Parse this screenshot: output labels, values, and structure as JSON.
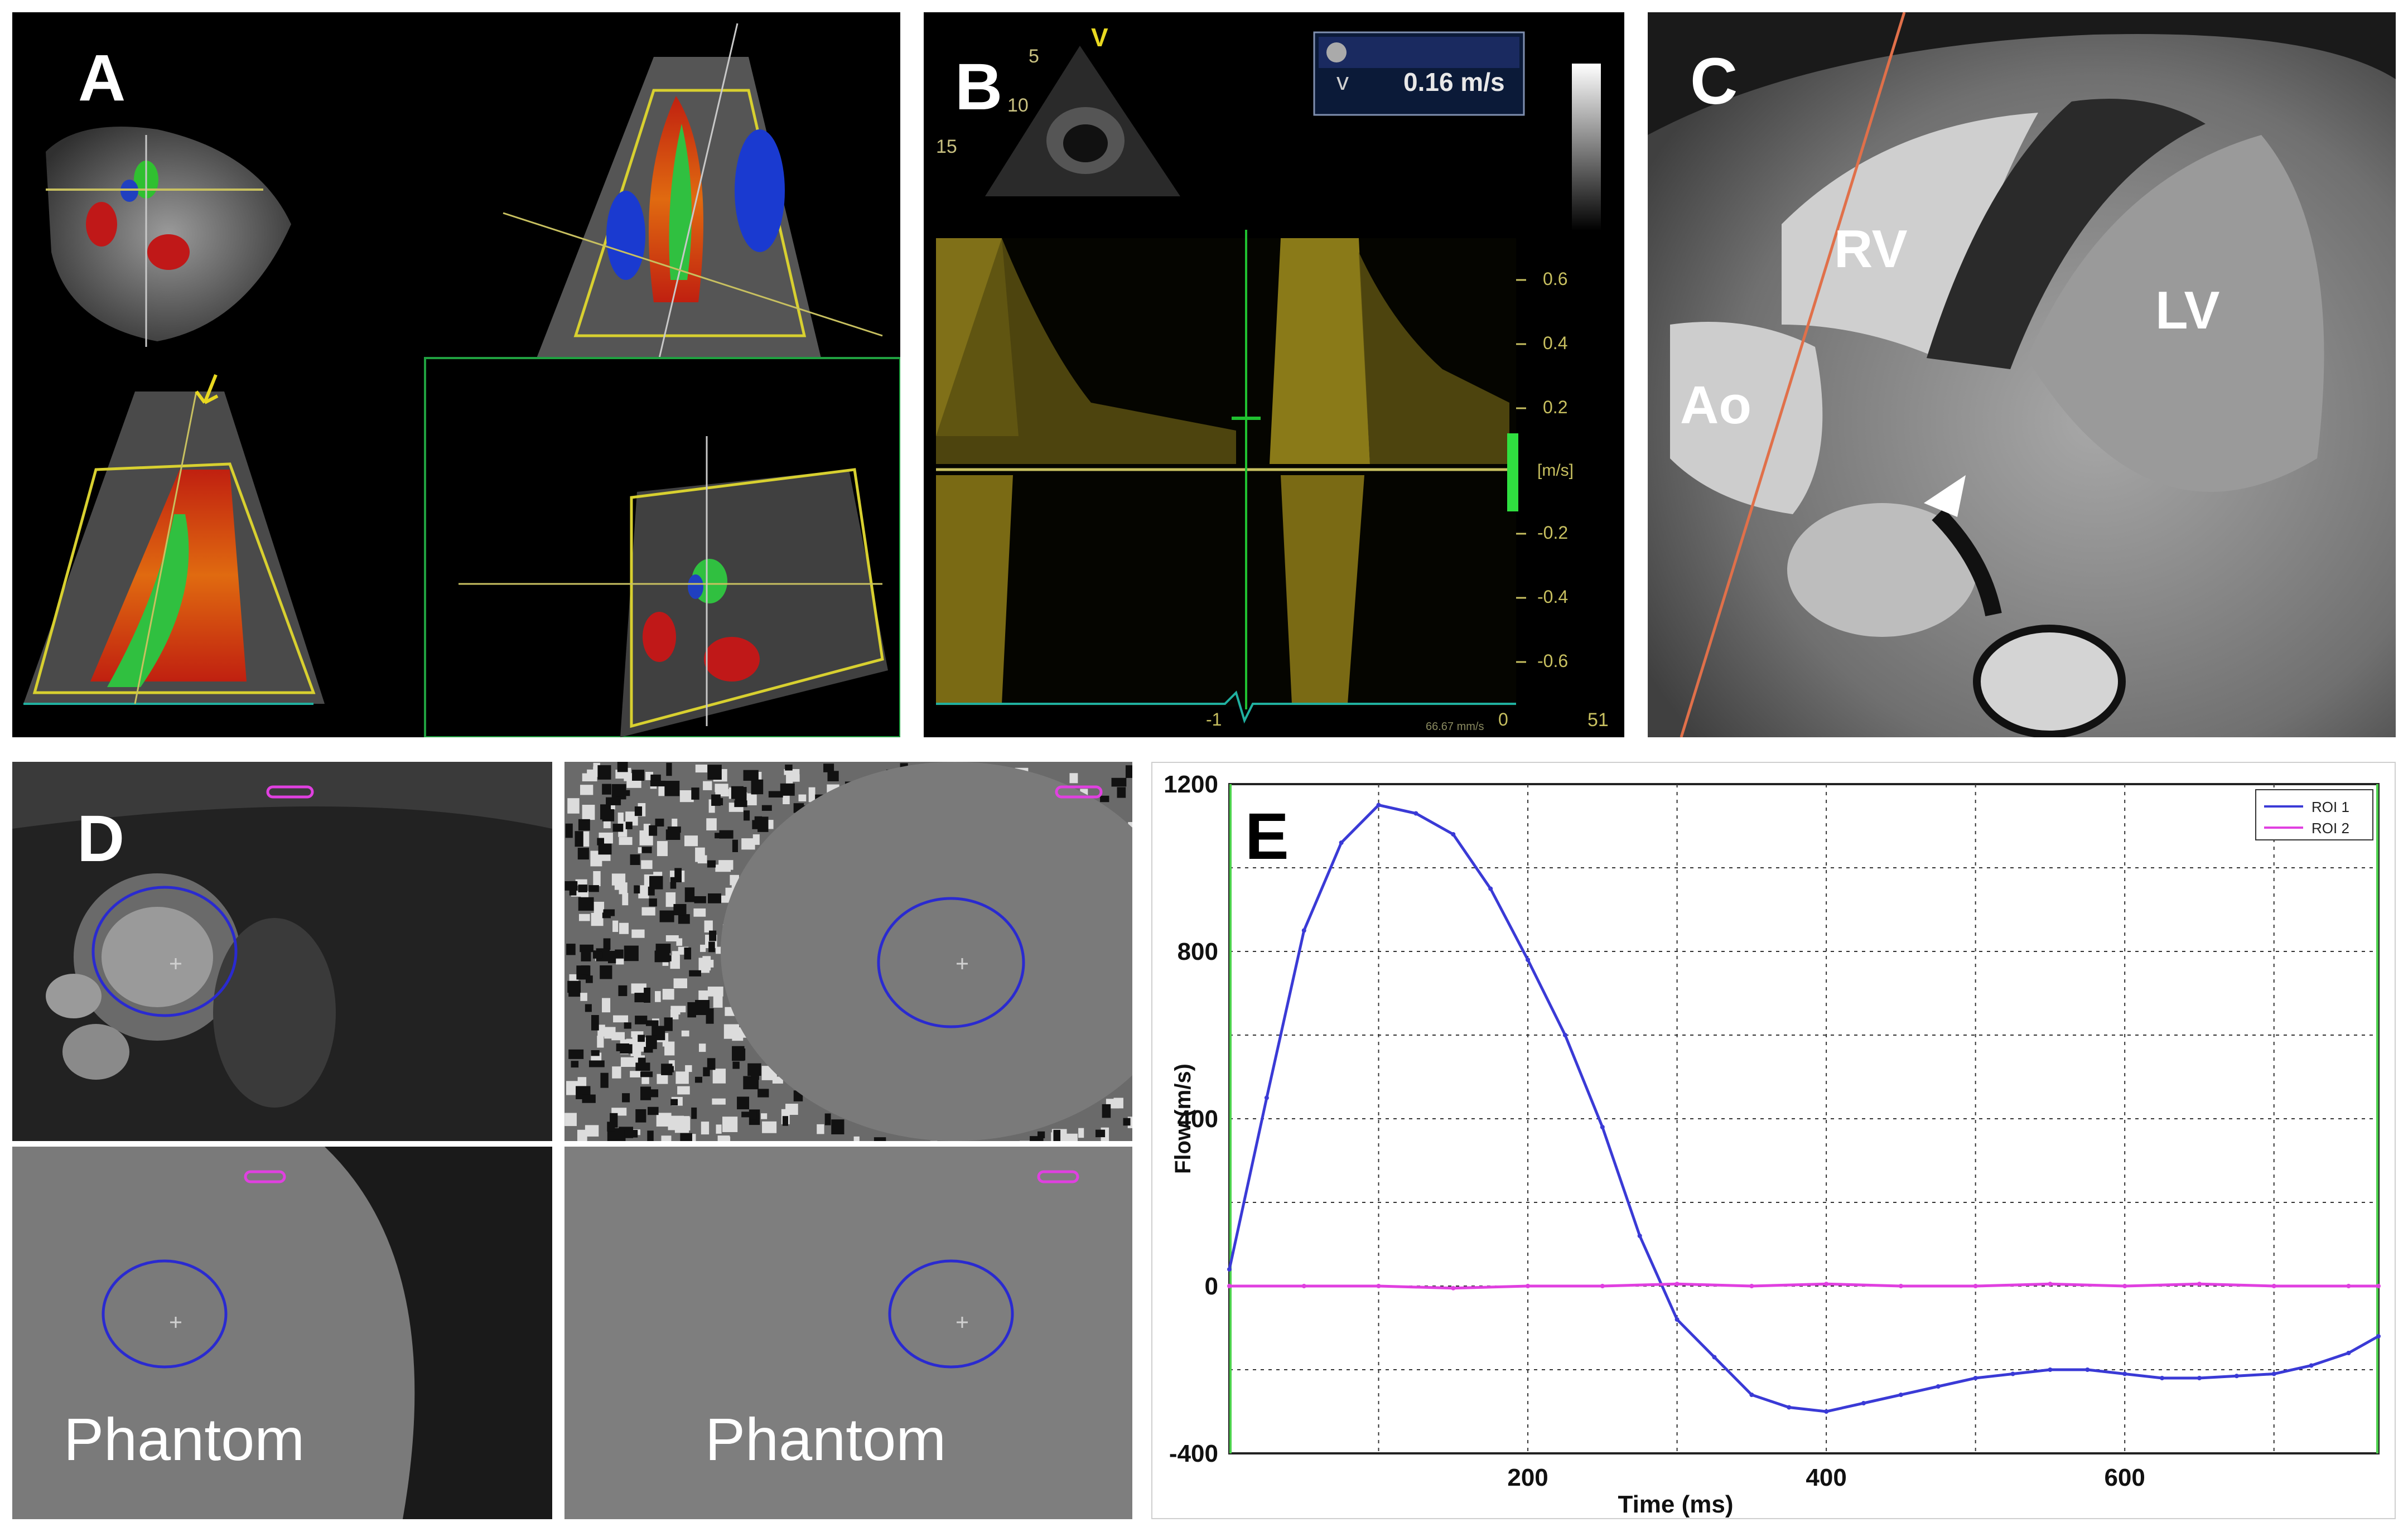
{
  "panels": {
    "a": {
      "label": "A"
    },
    "b": {
      "label": "B",
      "readout_symbol": "v",
      "readout_value": "0.16 m/s",
      "depth_ticks": [
        "5",
        "10",
        "15"
      ],
      "probe_mark": "V",
      "y_unit": "[m/s]",
      "y_ticks": [
        "0.6",
        "0.4",
        "0.2",
        "-0.2",
        "-0.4",
        "-0.6"
      ],
      "x_ticks": [
        "-1",
        "0"
      ],
      "corner_text": "51",
      "scale_text": "66.67 mm/s"
    },
    "c": {
      "label": "C",
      "structures": [
        "RV",
        "LV",
        "Ao"
      ]
    },
    "d": {
      "label": "D",
      "captions": [
        "Phantom",
        "Phantom"
      ]
    },
    "e": {
      "label": "E"
    }
  },
  "chart_data": {
    "type": "line",
    "xlabel": "Time (ms)",
    "ylabel": "Flow (m/s)",
    "xlim": [
      0,
      770
    ],
    "ylim": [
      -400,
      1200
    ],
    "x_ticks": [
      200,
      400,
      600
    ],
    "y_ticks": [
      -400,
      0,
      400,
      800,
      1200
    ],
    "grid": true,
    "legend_position": "top-right",
    "colors": {
      "roi1": "#3a3ad6",
      "roi2": "#e040e0"
    },
    "series": [
      {
        "name": "ROI 1",
        "x": [
          0,
          25,
          50,
          75,
          100,
          125,
          150,
          175,
          200,
          225,
          250,
          275,
          300,
          325,
          350,
          375,
          400,
          425,
          450,
          475,
          500,
          525,
          550,
          575,
          600,
          625,
          650,
          675,
          700,
          725,
          750,
          770
        ],
        "values": [
          40,
          450,
          850,
          1060,
          1150,
          1130,
          1080,
          950,
          780,
          600,
          380,
          120,
          -80,
          -170,
          -260,
          -290,
          -300,
          -280,
          -260,
          -240,
          -220,
          -210,
          -200,
          -200,
          -210,
          -220,
          -220,
          -215,
          -210,
          -190,
          -160,
          -120
        ]
      },
      {
        "name": "ROI 2",
        "x": [
          0,
          50,
          100,
          150,
          200,
          250,
          300,
          350,
          400,
          450,
          500,
          550,
          600,
          650,
          700,
          750,
          770
        ],
        "values": [
          0,
          0,
          0,
          -5,
          0,
          0,
          5,
          0,
          5,
          0,
          0,
          5,
          0,
          5,
          0,
          0,
          0
        ]
      }
    ]
  }
}
